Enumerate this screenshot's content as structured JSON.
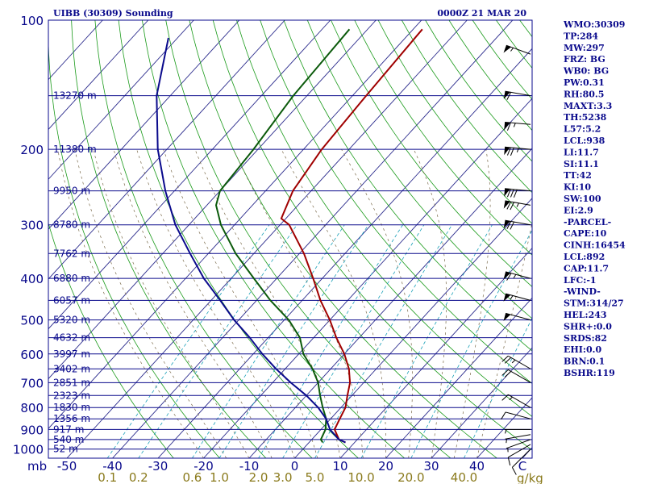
{
  "chart_data": {
    "type": "line",
    "title_left": "UIBB (30309) Sounding",
    "title_right": "0000Z 21 MAR 20",
    "pressure_axis_label": "mb",
    "pressure_ticks": [
      100,
      200,
      300,
      400,
      500,
      600,
      700,
      800,
      900,
      1000
    ],
    "isobars": [
      100,
      150,
      200,
      250,
      300,
      350,
      400,
      450,
      500,
      550,
      600,
      650,
      700,
      750,
      800,
      850,
      900,
      950,
      1000
    ],
    "temp_axis_labels": [
      "-50",
      "-40",
      "-30",
      "-20",
      "-10",
      "0",
      "10",
      "20",
      "30",
      "40"
    ],
    "temp_axis_last_label": "C",
    "temp_range": [
      -50,
      50
    ],
    "mixing_ratio_labels": [
      "0.1",
      "0.2",
      "0.6",
      "1.0",
      "2.0",
      "3.0",
      "5.0",
      "10.0",
      "20.0",
      "40.0"
    ],
    "mixing_ratio_unit": "g/kg",
    "heights": [
      {
        "p": 150,
        "label": "13270 m"
      },
      {
        "p": 200,
        "label": "11380 m"
      },
      {
        "p": 250,
        "label": "9950 m"
      },
      {
        "p": 300,
        "label": "8780 m"
      },
      {
        "p": 350,
        "label": "7762 m"
      },
      {
        "p": 400,
        "label": "6880 m"
      },
      {
        "p": 450,
        "label": "6057 m"
      },
      {
        "p": 500,
        "label": "5320 m"
      },
      {
        "p": 550,
        "label": "4632 m"
      },
      {
        "p": 600,
        "label": "3997 m"
      },
      {
        "p": 650,
        "label": "3402 m"
      },
      {
        "p": 700,
        "label": "2851 m"
      },
      {
        "p": 750,
        "label": "2323 m"
      },
      {
        "p": 800,
        "label": "1830 m"
      },
      {
        "p": 850,
        "label": "1356 m"
      },
      {
        "p": 900,
        "label": "917 m"
      },
      {
        "p": 950,
        "label": "540 m"
      },
      {
        "p": 1000,
        "label": "52 m"
      }
    ],
    "series": [
      {
        "name": "Temperature",
        "color": "#a00000",
        "points": [
          [
            965,
            8
          ],
          [
            950,
            6
          ],
          [
            900,
            3
          ],
          [
            850,
            2
          ],
          [
            800,
            1
          ],
          [
            750,
            -1
          ],
          [
            700,
            -3
          ],
          [
            650,
            -6
          ],
          [
            600,
            -10
          ],
          [
            550,
            -15
          ],
          [
            500,
            -20
          ],
          [
            450,
            -26
          ],
          [
            400,
            -32
          ],
          [
            350,
            -39
          ],
          [
            300,
            -48
          ],
          [
            290,
            -51
          ],
          [
            250,
            -54
          ],
          [
            200,
            -56
          ],
          [
            150,
            -57
          ],
          [
            105,
            -58
          ]
        ]
      },
      {
        "name": "Dewpoint",
        "color": "#0b5a0b",
        "points": [
          [
            965,
            3
          ],
          [
            950,
            2
          ],
          [
            900,
            1
          ],
          [
            850,
            -1
          ],
          [
            800,
            -4
          ],
          [
            750,
            -7
          ],
          [
            700,
            -10
          ],
          [
            650,
            -14
          ],
          [
            600,
            -19
          ],
          [
            550,
            -23
          ],
          [
            500,
            -29
          ],
          [
            450,
            -37
          ],
          [
            400,
            -45
          ],
          [
            350,
            -54
          ],
          [
            300,
            -63
          ],
          [
            270,
            -68
          ],
          [
            250,
            -70
          ],
          [
            200,
            -71
          ],
          [
            150,
            -73
          ],
          [
            105,
            -74
          ]
        ]
      },
      {
        "name": "Parcel",
        "color": "#0a0a8c",
        "points": [
          [
            965,
            8
          ],
          [
            950,
            6
          ],
          [
            900,
            2
          ],
          [
            850,
            -1
          ],
          [
            800,
            -5
          ],
          [
            750,
            -10
          ],
          [
            700,
            -16
          ],
          [
            650,
            -22
          ],
          [
            600,
            -28
          ],
          [
            550,
            -34
          ],
          [
            500,
            -41
          ],
          [
            450,
            -48
          ],
          [
            400,
            -56
          ],
          [
            350,
            -64
          ],
          [
            300,
            -73
          ],
          [
            250,
            -82
          ],
          [
            200,
            -92
          ],
          [
            150,
            -103
          ],
          [
            110,
            -112
          ]
        ]
      }
    ],
    "winds": [
      {
        "p": 1000,
        "dir": 225,
        "spd": 10
      },
      {
        "p": 975,
        "dir": 240,
        "spd": 10
      },
      {
        "p": 950,
        "dir": 250,
        "spd": 5
      },
      {
        "p": 925,
        "dir": 260,
        "spd": 5
      },
      {
        "p": 900,
        "dir": 270,
        "spd": 5
      },
      {
        "p": 850,
        "dir": 285,
        "spd": 10
      },
      {
        "p": 800,
        "dir": 300,
        "spd": 15
      },
      {
        "p": 700,
        "dir": 300,
        "spd": 20
      },
      {
        "p": 650,
        "dir": 300,
        "spd": 25
      },
      {
        "p": 500,
        "dir": 285,
        "spd": 50
      },
      {
        "p": 450,
        "dir": 285,
        "spd": 55
      },
      {
        "p": 400,
        "dir": 285,
        "spd": 65
      },
      {
        "p": 300,
        "dir": 280,
        "spd": 70
      },
      {
        "p": 270,
        "dir": 280,
        "spd": 75
      },
      {
        "p": 250,
        "dir": 275,
        "spd": 80
      },
      {
        "p": 200,
        "dir": 275,
        "spd": 75
      },
      {
        "p": 175,
        "dir": 275,
        "spd": 65
      },
      {
        "p": 150,
        "dir": 280,
        "spd": 60
      },
      {
        "p": 120,
        "dir": 290,
        "spd": 55
      }
    ]
  },
  "indices": [
    "WMO:30309",
    "TP:284",
    "MW:297",
    "FRZ: BG",
    "WB0: BG",
    "PW:0.31",
    "RH:80.5",
    "MAXT:3.3",
    "TH:5238",
    "L57:5.2",
    "LCL:938",
    "LI:11.7",
    "SI:11.1",
    "TT:42",
    "KI:10",
    "SW:100",
    "EI:2.9",
    "-PARCEL-",
    "CAPE:10",
    "CINH:16454",
    "LCL:892",
    "CAP:11.7",
    "LFC:-1",
    "-WIND-",
    "STM:314/27",
    "HEL:243",
    "SHR+:0.0",
    "SRDS:82",
    "EHI:0.0",
    "BRN:0.1",
    "BSHR:119"
  ],
  "colors": {
    "text": "#0a0a8c",
    "isobar": "#0a0a8c",
    "isotherm": "#2a2a8c",
    "dry_adiabat": "#1a9a1a",
    "moist_adiabat": "#7a6a4a",
    "mixing_ratio": "#1aa0b8",
    "temperature": "#a00000",
    "dewpoint": "#0b5a0b",
    "parcel": "#0a0a8c",
    "wind": "#000000"
  }
}
